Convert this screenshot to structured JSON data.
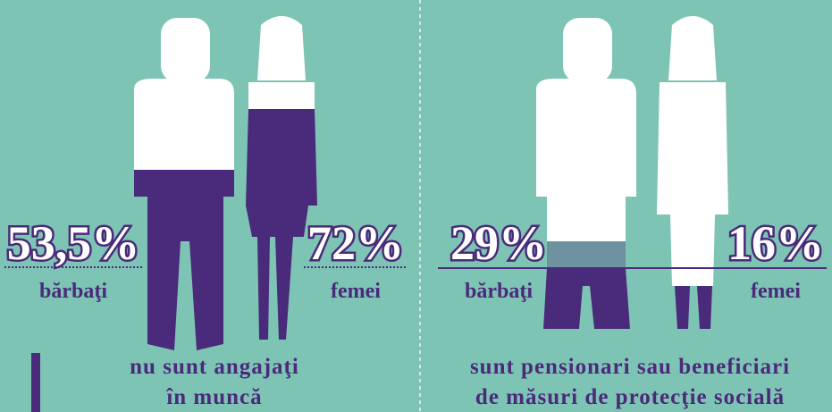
{
  "panels": [
    {
      "men": {
        "value": "53,5%",
        "label": "bărbaţi"
      },
      "women": {
        "value": "72%",
        "label": "femei"
      },
      "caption": [
        "nu sunt angajaţi",
        "în muncă"
      ]
    },
    {
      "men": {
        "value": "29%",
        "label": "bărbaţi"
      },
      "women": {
        "value": "16%",
        "label": "femei"
      },
      "caption": [
        "sunt pensionari sau beneficiari",
        "de măsuri de protecţie socială"
      ]
    }
  ]
}
